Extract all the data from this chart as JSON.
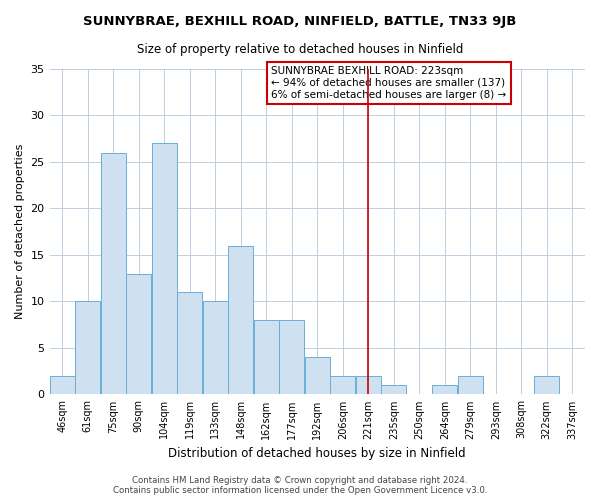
{
  "title": "SUNNYBRAE, BEXHILL ROAD, NINFIELD, BATTLE, TN33 9JB",
  "subtitle": "Size of property relative to detached houses in Ninfield",
  "bar_labels": [
    "46sqm",
    "61sqm",
    "75sqm",
    "90sqm",
    "104sqm",
    "119sqm",
    "133sqm",
    "148sqm",
    "162sqm",
    "177sqm",
    "192sqm",
    "206sqm",
    "221sqm",
    "235sqm",
    "250sqm",
    "264sqm",
    "279sqm",
    "293sqm",
    "308sqm",
    "322sqm",
    "337sqm"
  ],
  "bar_values": [
    2,
    10,
    26,
    13,
    27,
    11,
    10,
    16,
    8,
    8,
    4,
    2,
    2,
    1,
    0,
    1,
    2,
    0,
    0,
    2,
    0
  ],
  "bar_color": "#cfe0f0",
  "bar_edge_color": "#6aaed6",
  "vline_index": 12,
  "vline_color": "#cc0000",
  "ylim": [
    0,
    35
  ],
  "yticks": [
    0,
    5,
    10,
    15,
    20,
    25,
    30,
    35
  ],
  "ylabel": "Number of detached properties",
  "xlabel": "Distribution of detached houses by size in Ninfield",
  "annotation_title": "SUNNYBRAE BEXHILL ROAD: 223sqm",
  "annotation_line1": "← 94% of detached houses are smaller (137)",
  "annotation_line2": "6% of semi-detached houses are larger (8) →",
  "annotation_box_edge": "#cc0000",
  "footnote1": "Contains HM Land Registry data © Crown copyright and database right 2024.",
  "footnote2": "Contains public sector information licensed under the Open Government Licence v3.0.",
  "bg_color": "#ffffff",
  "grid_color": "#c0cfe0"
}
